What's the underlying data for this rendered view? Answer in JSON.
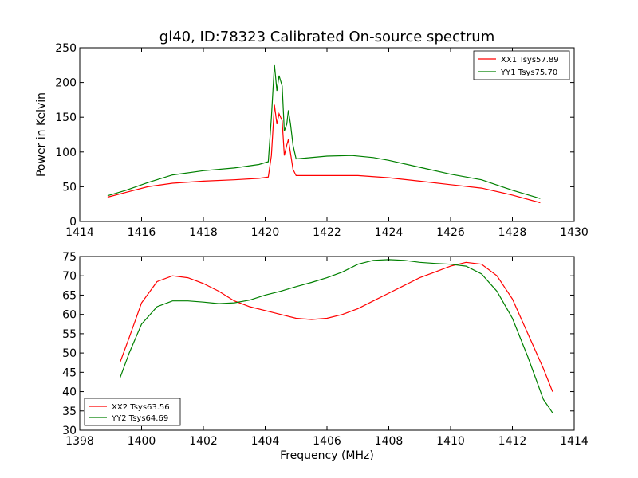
{
  "figure": {
    "title": "gl40, ID:78323 Calibrated On-source spectrum"
  },
  "chart_data": [
    {
      "type": "line",
      "ylabel": "Power in Kelvin",
      "xlabel": "",
      "xlim": [
        1414,
        1430
      ],
      "ylim": [
        0,
        250
      ],
      "xticks": [
        1414,
        1416,
        1418,
        1420,
        1422,
        1424,
        1426,
        1428,
        1430
      ],
      "yticks": [
        0,
        50,
        100,
        150,
        200,
        250
      ],
      "legend_position": "top-right",
      "series": [
        {
          "name": "XX1 Tsys57.89",
          "color": "#ff0000",
          "points": [
            [
              1414.9,
              35
            ],
            [
              1415.5,
              42
            ],
            [
              1416.2,
              50
            ],
            [
              1417,
              55
            ],
            [
              1418,
              58
            ],
            [
              1419,
              60
            ],
            [
              1419.8,
              62
            ],
            [
              1420.1,
              64
            ],
            [
              1420.2,
              95
            ],
            [
              1420.3,
              168
            ],
            [
              1420.38,
              140
            ],
            [
              1420.45,
              155
            ],
            [
              1420.55,
              145
            ],
            [
              1420.62,
              95
            ],
            [
              1420.7,
              110
            ],
            [
              1420.75,
              118
            ],
            [
              1420.82,
              98
            ],
            [
              1420.9,
              75
            ],
            [
              1421,
              66
            ],
            [
              1422,
              66
            ],
            [
              1423,
              66
            ],
            [
              1424,
              63
            ],
            [
              1425,
              58
            ],
            [
              1426,
              53
            ],
            [
              1427,
              48
            ],
            [
              1428,
              38
            ],
            [
              1428.9,
              27
            ]
          ]
        },
        {
          "name": "YY1 Tsys75.70",
          "color": "#008000",
          "points": [
            [
              1414.9,
              37
            ],
            [
              1415.5,
              45
            ],
            [
              1416.2,
              56
            ],
            [
              1417,
              67
            ],
            [
              1418,
              73
            ],
            [
              1419,
              77
            ],
            [
              1419.8,
              82
            ],
            [
              1420.1,
              86
            ],
            [
              1420.2,
              150
            ],
            [
              1420.3,
              226
            ],
            [
              1420.38,
              188
            ],
            [
              1420.45,
              210
            ],
            [
              1420.55,
              195
            ],
            [
              1420.62,
              130
            ],
            [
              1420.7,
              140
            ],
            [
              1420.75,
              160
            ],
            [
              1420.82,
              140
            ],
            [
              1420.9,
              110
            ],
            [
              1421,
              90
            ],
            [
              1422,
              94
            ],
            [
              1422.8,
              95
            ],
            [
              1423.5,
              92
            ],
            [
              1424,
              88
            ],
            [
              1425,
              78
            ],
            [
              1426,
              68
            ],
            [
              1427,
              60
            ],
            [
              1428,
              45
            ],
            [
              1428.9,
              33
            ]
          ]
        }
      ]
    },
    {
      "type": "line",
      "ylabel": "",
      "xlabel": "Frequency (MHz)",
      "xlim": [
        1398,
        1414
      ],
      "ylim": [
        30,
        75
      ],
      "xticks": [
        1398,
        1400,
        1402,
        1404,
        1406,
        1408,
        1410,
        1412,
        1414
      ],
      "yticks": [
        30,
        35,
        40,
        45,
        50,
        55,
        60,
        65,
        70,
        75
      ],
      "legend_position": "bottom-left",
      "series": [
        {
          "name": "XX2 Tsys63.56",
          "color": "#ff0000",
          "points": [
            [
              1399.3,
              47.5
            ],
            [
              1399.6,
              54
            ],
            [
              1400,
              63
            ],
            [
              1400.5,
              68.5
            ],
            [
              1401,
              70
            ],
            [
              1401.5,
              69.5
            ],
            [
              1402,
              68
            ],
            [
              1402.5,
              66
            ],
            [
              1403,
              63.5
            ],
            [
              1403.5,
              62
            ],
            [
              1404,
              61
            ],
            [
              1404.5,
              60
            ],
            [
              1405,
              59
            ],
            [
              1405.5,
              58.7
            ],
            [
              1406,
              59
            ],
            [
              1406.5,
              60
            ],
            [
              1407,
              61.5
            ],
            [
              1407.5,
              63.5
            ],
            [
              1408,
              65.5
            ],
            [
              1408.5,
              67.5
            ],
            [
              1409,
              69.5
            ],
            [
              1409.5,
              71
            ],
            [
              1410,
              72.5
            ],
            [
              1410.5,
              73.5
            ],
            [
              1411,
              73
            ],
            [
              1411.5,
              70
            ],
            [
              1412,
              64
            ],
            [
              1412.5,
              55
            ],
            [
              1413,
              46
            ],
            [
              1413.3,
              40
            ]
          ]
        },
        {
          "name": "YY2 Tsys64.69",
          "color": "#008000",
          "points": [
            [
              1399.3,
              43.5
            ],
            [
              1399.6,
              50
            ],
            [
              1400,
              57.5
            ],
            [
              1400.5,
              62
            ],
            [
              1401,
              63.5
            ],
            [
              1401.5,
              63.5
            ],
            [
              1402,
              63.2
            ],
            [
              1402.5,
              62.8
            ],
            [
              1403,
              63
            ],
            [
              1403.5,
              63.7
            ],
            [
              1404,
              65
            ],
            [
              1404.5,
              66
            ],
            [
              1405,
              67.2
            ],
            [
              1405.5,
              68.3
            ],
            [
              1406,
              69.5
            ],
            [
              1406.5,
              71
            ],
            [
              1407,
              73
            ],
            [
              1407.5,
              74
            ],
            [
              1408,
              74.2
            ],
            [
              1408.5,
              74
            ],
            [
              1409,
              73.5
            ],
            [
              1409.5,
              73.2
            ],
            [
              1410,
              73
            ],
            [
              1410.5,
              72.5
            ],
            [
              1411,
              70.5
            ],
            [
              1411.5,
              66
            ],
            [
              1412,
              59
            ],
            [
              1412.5,
              49
            ],
            [
              1413,
              38
            ],
            [
              1413.3,
              34.5
            ]
          ]
        }
      ]
    }
  ]
}
